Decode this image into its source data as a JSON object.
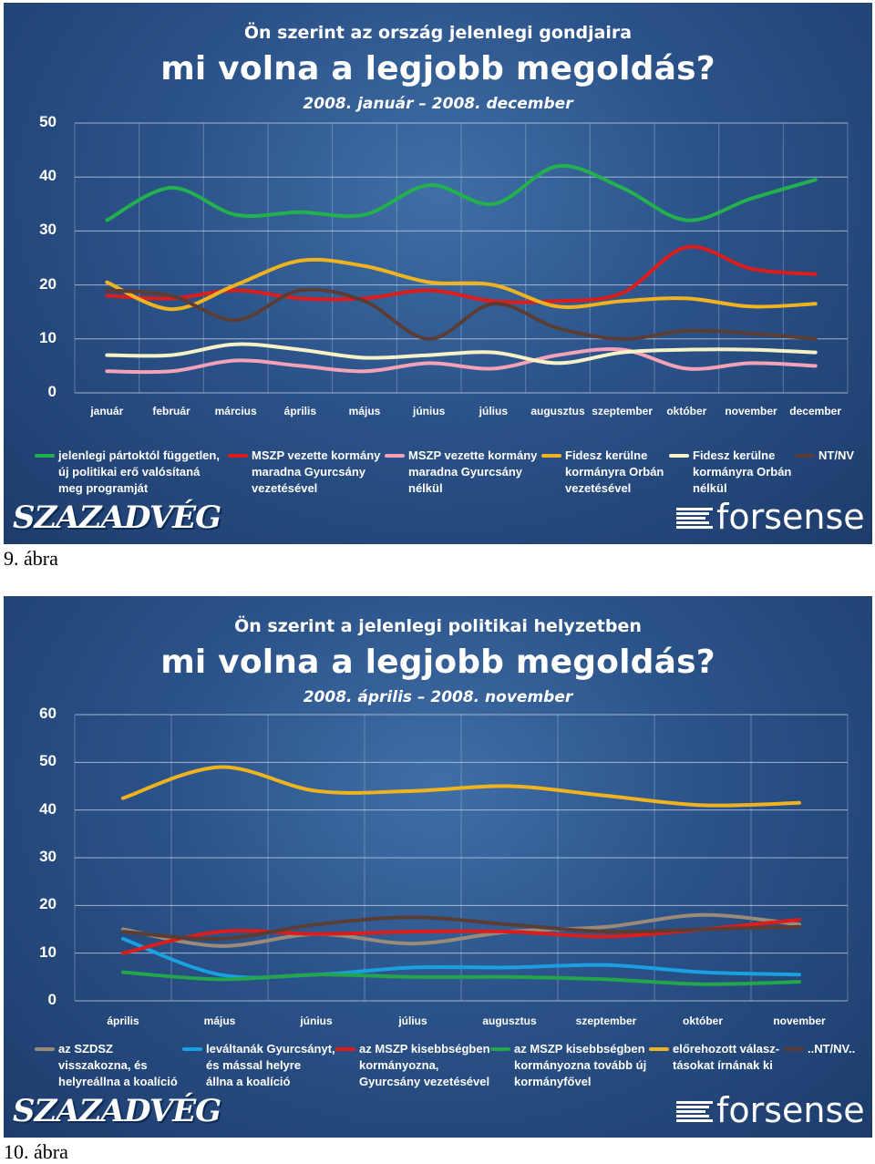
{
  "figures": [
    {
      "title_small": "Ön szerint az ország jelenlegi gondjaira",
      "title_big": "mi volna a legjobb megoldás?",
      "period": "2008. január – 2008. december",
      "caption": "9. ábra",
      "logo_left": "SZAZADVÉG",
      "logo_right": "forsense",
      "chart_data": {
        "type": "line",
        "categories": [
          "január",
          "február",
          "március",
          "április",
          "május",
          "június",
          "július",
          "augusztus",
          "szeptember",
          "október",
          "november",
          "december"
        ],
        "ylim": [
          0,
          50
        ],
        "yticks": [
          0,
          10,
          20,
          30,
          40,
          50
        ],
        "grid": true,
        "legend_position": "bottom",
        "series": [
          {
            "name": "jelenlegi pártoktól független,\núj politikai erő valósítaná\n meg programját",
            "color": "#22b14c",
            "values": [
              32,
              38,
              33,
              33.5,
              33,
              38.5,
              35,
              42,
              38,
              32,
              36,
              39.5
            ]
          },
          {
            "name": "MSZP vezette kormány\nmaradna Gyurcsány\nvezetésével",
            "color": "#dd1c1c",
            "values": [
              18,
              17.5,
              19,
              17.5,
              17.5,
              19,
              17,
              17,
              18.5,
              27,
              23,
              22
            ]
          },
          {
            "name": "MSZP vezette kormány\nmaradna Gyurcsány\nnélkül",
            "color": "#f3a2b8",
            "values": [
              4,
              4,
              6,
              5,
              4,
              5.5,
              4.5,
              7,
              8,
              4.5,
              5.5,
              5
            ]
          },
          {
            "name": "Fidesz kerülne\nkormányra Orbán\nvezetésével",
            "color": "#f0b320",
            "values": [
              20.5,
              15.5,
              20,
              24.5,
              23.5,
              20.5,
              20,
              16,
              17,
              17.5,
              16,
              16.5
            ]
          },
          {
            "name": "Fidesz kerülne\nkormányra Orbán\nnélkül",
            "color": "#f6f2c8",
            "values": [
              7,
              7,
              9,
              8,
              6.5,
              7,
              7.5,
              5.5,
              7.5,
              8,
              8,
              7.5
            ]
          },
          {
            "name": "NT/NV",
            "color": "#5a3e36",
            "values": [
              19,
              18,
              13.5,
              19,
              17,
              10,
              16.5,
              12,
              10,
              11.5,
              11,
              10
            ]
          }
        ]
      }
    },
    {
      "title_small": "Ön szerint a jelenlegi politikai helyzetben",
      "title_big": "mi volna a legjobb megoldás?",
      "period": "2008. április – 2008. november",
      "caption": "10. ábra",
      "logo_left": "SZAZADVÉG",
      "logo_right": "forsense",
      "chart_data": {
        "type": "line",
        "categories": [
          "április",
          "május",
          "június",
          "július",
          "augusztus",
          "szeptember",
          "október",
          "november"
        ],
        "ylim": [
          0,
          60
        ],
        "yticks": [
          0,
          10,
          20,
          30,
          40,
          50,
          60
        ],
        "grid": true,
        "legend_position": "bottom",
        "series": [
          {
            "name": "az SZDSZ\nvisszakozna, és\nhelyreállna a koalíció",
            "color": "#9a8a78",
            "values": [
              15,
              11.5,
              14,
              12,
              14.5,
              15.5,
              18,
              16
            ]
          },
          {
            "name": "leváltanák Gyurcsányt,\nés mással helyre\nállna a koalíció",
            "color": "#1aa0e0",
            "values": [
              13,
              5.5,
              5.5,
              7,
              7,
              7.5,
              6,
              5.5
            ]
          },
          {
            "name": "az MSZP kisebbségben\nkormányozna,\nGyurcsány vezetésével",
            "color": "#dd1c1c",
            "values": [
              10,
              14.5,
              14,
              14.5,
              14.5,
              13.5,
              15,
              17
            ]
          },
          {
            "name": "az MSZP kisebbségben\nkormányozna tovább új\nkormányfővel",
            "color": "#22a54b",
            "values": [
              6,
              4.5,
              5.5,
              5,
              5,
              4.5,
              3.5,
              4
            ]
          },
          {
            "name": "előrehozott válasz-\ntásokat írnának ki",
            "color": "#f0b320",
            "values": [
              42.5,
              49,
              44,
              44,
              45,
              43,
              41,
              41.5
            ]
          },
          {
            "name": "..NT/NV..",
            "color": "#5a3e36",
            "values": [
              14.5,
              13,
              16,
              17.5,
              16,
              14.5,
              15,
              15.5
            ]
          }
        ]
      }
    }
  ]
}
